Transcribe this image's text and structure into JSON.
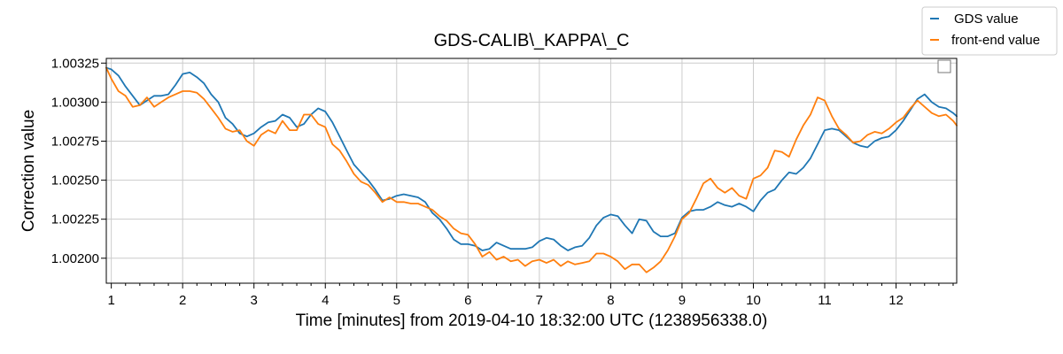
{
  "chart_data": {
    "type": "line",
    "title": "GDS-CALIB\\_KAPPA\\_C",
    "xlabel": "Time [minutes] from 2019-04-10 18:32:00 UTC (1238956338.0)",
    "ylabel": "Correction value",
    "xlim": [
      0.93,
      12.85
    ],
    "ylim": [
      1.00184,
      1.00328
    ],
    "xticks": [
      1,
      2,
      3,
      4,
      5,
      6,
      7,
      8,
      9,
      10,
      11,
      12
    ],
    "xtick_labels": [
      "1",
      "2",
      "3",
      "4",
      "5",
      "6",
      "7",
      "8",
      "9",
      "10",
      "11",
      "12"
    ],
    "yticks": [
      1.002,
      1.00225,
      1.0025,
      1.00275,
      1.003,
      1.00325
    ],
    "ytick_labels": [
      "1.00200",
      "1.00225",
      "1.00250",
      "1.00275",
      "1.00300",
      "1.00325"
    ],
    "grid": true,
    "legend_position": "top-right, outside axes",
    "series": [
      {
        "name": "GDS value",
        "color": "#1f77b4",
        "x": [
          0.93,
          1.0,
          1.1,
          1.2,
          1.3,
          1.4,
          1.5,
          1.6,
          1.7,
          1.8,
          1.9,
          2.0,
          2.1,
          2.2,
          2.3,
          2.4,
          2.5,
          2.6,
          2.7,
          2.8,
          2.9,
          3.0,
          3.1,
          3.2,
          3.3,
          3.4,
          3.5,
          3.6,
          3.7,
          3.8,
          3.9,
          4.0,
          4.1,
          4.2,
          4.3,
          4.4,
          4.5,
          4.6,
          4.7,
          4.8,
          4.9,
          5.0,
          5.1,
          5.2,
          5.3,
          5.4,
          5.5,
          5.6,
          5.7,
          5.8,
          5.9,
          6.0,
          6.1,
          6.2,
          6.3,
          6.4,
          6.5,
          6.6,
          6.7,
          6.8,
          6.9,
          7.0,
          7.1,
          7.2,
          7.3,
          7.4,
          7.5,
          7.6,
          7.7,
          7.8,
          7.9,
          8.0,
          8.1,
          8.2,
          8.3,
          8.4,
          8.5,
          8.6,
          8.7,
          8.8,
          8.9,
          9.0,
          9.1,
          9.2,
          9.3,
          9.4,
          9.5,
          9.6,
          9.7,
          9.8,
          9.9,
          10.0,
          10.1,
          10.2,
          10.3,
          10.4,
          10.5,
          10.6,
          10.7,
          10.8,
          10.9,
          11.0,
          11.1,
          11.2,
          11.3,
          11.4,
          11.5,
          11.6,
          11.7,
          11.8,
          11.9,
          12.0,
          12.1,
          12.2,
          12.3,
          12.4,
          12.5,
          12.6,
          12.7,
          12.8,
          12.85
        ],
        "y": [
          1.00322,
          1.00321,
          1.00317,
          1.0031,
          1.00304,
          1.00298,
          1.00301,
          1.00304,
          1.00304,
          1.00305,
          1.00311,
          1.00318,
          1.00319,
          1.00316,
          1.00312,
          1.00305,
          1.003,
          1.0029,
          1.00286,
          1.0028,
          1.00278,
          1.0028,
          1.00284,
          1.00287,
          1.00288,
          1.00292,
          1.0029,
          1.00284,
          1.00286,
          1.00292,
          1.00296,
          1.00294,
          1.00287,
          1.00278,
          1.00269,
          1.0026,
          1.00255,
          1.0025,
          1.00244,
          1.00237,
          1.00238,
          1.0024,
          1.00241,
          1.0024,
          1.00239,
          1.00236,
          1.00229,
          1.00225,
          1.00219,
          1.00212,
          1.00209,
          1.00209,
          1.00208,
          1.00205,
          1.00206,
          1.0021,
          1.00208,
          1.00206,
          1.00206,
          1.00206,
          1.00207,
          1.00211,
          1.00213,
          1.00212,
          1.00208,
          1.00205,
          1.00207,
          1.00208,
          1.00213,
          1.00221,
          1.00226,
          1.00228,
          1.00227,
          1.00221,
          1.00216,
          1.00225,
          1.00224,
          1.00217,
          1.00214,
          1.00214,
          1.00216,
          1.00226,
          1.0023,
          1.00231,
          1.00231,
          1.00233,
          1.00236,
          1.00234,
          1.00233,
          1.00235,
          1.00233,
          1.0023,
          1.00237,
          1.00242,
          1.00244,
          1.0025,
          1.00255,
          1.00254,
          1.00258,
          1.00264,
          1.00273,
          1.00282,
          1.00283,
          1.00282,
          1.00278,
          1.00274,
          1.00272,
          1.00271,
          1.00275,
          1.00277,
          1.00278,
          1.00282,
          1.00288,
          1.00295,
          1.00302,
          1.00305,
          1.003,
          1.00297,
          1.00296,
          1.00293,
          1.00291
        ]
      },
      {
        "name": "front-end value",
        "color": "#ff7f0e",
        "x": [
          0.93,
          1.0,
          1.1,
          1.2,
          1.3,
          1.4,
          1.5,
          1.6,
          1.7,
          1.8,
          1.9,
          2.0,
          2.1,
          2.2,
          2.3,
          2.4,
          2.5,
          2.6,
          2.7,
          2.8,
          2.9,
          3.0,
          3.1,
          3.2,
          3.3,
          3.4,
          3.5,
          3.6,
          3.7,
          3.8,
          3.9,
          4.0,
          4.1,
          4.2,
          4.3,
          4.4,
          4.5,
          4.6,
          4.7,
          4.8,
          4.9,
          5.0,
          5.1,
          5.2,
          5.3,
          5.4,
          5.5,
          5.6,
          5.7,
          5.8,
          5.9,
          6.0,
          6.1,
          6.2,
          6.3,
          6.4,
          6.5,
          6.6,
          6.7,
          6.8,
          6.9,
          7.0,
          7.1,
          7.2,
          7.3,
          7.4,
          7.5,
          7.6,
          7.7,
          7.8,
          7.9,
          8.0,
          8.1,
          8.2,
          8.3,
          8.4,
          8.5,
          8.6,
          8.7,
          8.8,
          8.9,
          9.0,
          9.1,
          9.2,
          9.3,
          9.4,
          9.5,
          9.6,
          9.7,
          9.8,
          9.9,
          10.0,
          10.1,
          10.2,
          10.3,
          10.4,
          10.5,
          10.6,
          10.7,
          10.8,
          10.9,
          11.0,
          11.1,
          11.2,
          11.3,
          11.4,
          11.5,
          11.6,
          11.7,
          11.8,
          11.9,
          12.0,
          12.1,
          12.2,
          12.3,
          12.4,
          12.5,
          12.6,
          12.7,
          12.8,
          12.85
        ],
        "y": [
          1.00322,
          1.00315,
          1.00307,
          1.00304,
          1.00297,
          1.00298,
          1.00303,
          1.00297,
          1.003,
          1.00303,
          1.00305,
          1.00307,
          1.00307,
          1.00306,
          1.00302,
          1.00296,
          1.0029,
          1.00283,
          1.00281,
          1.00282,
          1.00275,
          1.00272,
          1.00279,
          1.00282,
          1.0028,
          1.00288,
          1.00282,
          1.00282,
          1.00292,
          1.00292,
          1.00286,
          1.00284,
          1.00273,
          1.00269,
          1.00262,
          1.00254,
          1.00249,
          1.00247,
          1.00242,
          1.00236,
          1.00239,
          1.00236,
          1.00236,
          1.00235,
          1.00235,
          1.00233,
          1.00231,
          1.00227,
          1.00224,
          1.00219,
          1.00216,
          1.00215,
          1.00209,
          1.00201,
          1.00204,
          1.00199,
          1.00201,
          1.00198,
          1.00199,
          1.00195,
          1.00198,
          1.00199,
          1.00197,
          1.00199,
          1.00195,
          1.00198,
          1.00196,
          1.00197,
          1.00198,
          1.00203,
          1.00203,
          1.00201,
          1.00198,
          1.00193,
          1.00196,
          1.00196,
          1.00191,
          1.00194,
          1.00198,
          1.00205,
          1.00214,
          1.00225,
          1.00229,
          1.00238,
          1.00248,
          1.00251,
          1.00245,
          1.00242,
          1.00245,
          1.0024,
          1.00238,
          1.00251,
          1.00253,
          1.00258,
          1.00269,
          1.00268,
          1.00265,
          1.00276,
          1.00285,
          1.00292,
          1.00303,
          1.00301,
          1.00291,
          1.00283,
          1.00279,
          1.00274,
          1.00275,
          1.00279,
          1.00281,
          1.0028,
          1.00283,
          1.00287,
          1.0029,
          1.00296,
          1.00301,
          1.00297,
          1.00293,
          1.00291,
          1.00292,
          1.00288,
          1.00285
        ]
      }
    ]
  }
}
